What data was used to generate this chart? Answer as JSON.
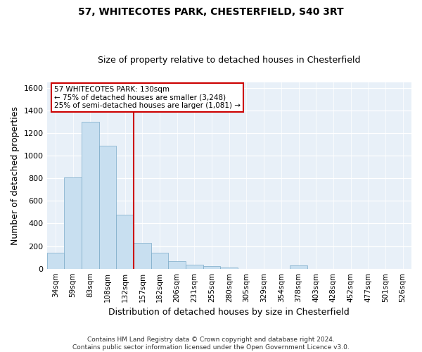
{
  "title1": "57, WHITECOTES PARK, CHESTERFIELD, S40 3RT",
  "title2": "Size of property relative to detached houses in Chesterfield",
  "xlabel": "Distribution of detached houses by size in Chesterfield",
  "ylabel": "Number of detached properties",
  "categories": [
    "34sqm",
    "59sqm",
    "83sqm",
    "108sqm",
    "132sqm",
    "157sqm",
    "182sqm",
    "206sqm",
    "231sqm",
    "255sqm",
    "280sqm",
    "305sqm",
    "329sqm",
    "354sqm",
    "378sqm",
    "403sqm",
    "428sqm",
    "452sqm",
    "477sqm",
    "501sqm",
    "526sqm"
  ],
  "values": [
    140,
    810,
    1300,
    1090,
    480,
    230,
    140,
    65,
    35,
    25,
    10,
    0,
    0,
    0,
    30,
    0,
    0,
    0,
    0,
    0,
    0
  ],
  "bar_color": "#c8dff0",
  "bar_edge_color": "#7aaac8",
  "vline_x_index": 4,
  "vline_color": "#cc0000",
  "ylim": [
    0,
    1650
  ],
  "yticks": [
    0,
    200,
    400,
    600,
    800,
    1000,
    1200,
    1400,
    1600
  ],
  "annotation_line1": "57 WHITECOTES PARK: 130sqm",
  "annotation_line2": "← 75% of detached houses are smaller (3,248)",
  "annotation_line3": "25% of semi-detached houses are larger (1,081) →",
  "annotation_box_color": "#ffffff",
  "annotation_box_edge": "#cc0000",
  "footer": "Contains HM Land Registry data © Crown copyright and database right 2024.\nContains public sector information licensed under the Open Government Licence v3.0.",
  "bg_color": "#e8f0f8",
  "plot_bg_color": "#ffffff",
  "title1_fontsize": 10,
  "title2_fontsize": 9,
  "xlabel_fontsize": 9,
  "ylabel_fontsize": 9,
  "xtick_fontsize": 7.5,
  "ytick_fontsize": 8,
  "ann_fontsize": 7.5,
  "footer_fontsize": 6.5
}
